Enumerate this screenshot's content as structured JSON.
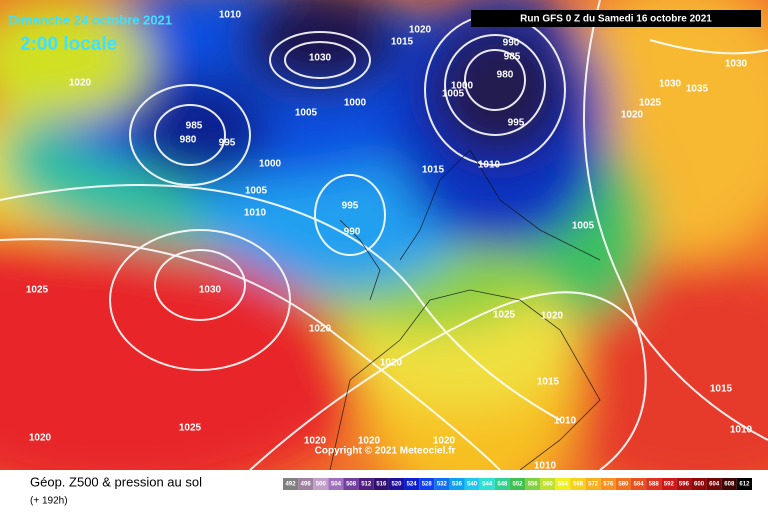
{
  "header": {
    "date": "Dimanche 24 octobre 2021",
    "time": "2:00 locale",
    "run": "Run GFS 0 Z du Samedi 16 octobre 2021"
  },
  "copyright": "Copyright © 2021 Meteociel.fr",
  "footer": {
    "title": "Géop. Z500 & pression au sol",
    "lead": "(+ 192h)"
  },
  "scale": [
    "492",
    "496",
    "500",
    "504",
    "508",
    "512",
    "516",
    "520",
    "524",
    "528",
    "532",
    "536",
    "540",
    "544",
    "548",
    "552",
    "556",
    "560",
    "564",
    "568",
    "572",
    "576",
    "580",
    "584",
    "588",
    "592",
    "596",
    "600",
    "604",
    "608",
    "612"
  ],
  "isobars": [
    "1010",
    "1020",
    "1015",
    "1030",
    "990",
    "985",
    "980",
    "1000",
    "1005",
    "995",
    "1010",
    "1015",
    "1020",
    "985",
    "980",
    "995",
    "1005",
    "1000",
    "1000",
    "1005",
    "1010",
    "995",
    "990",
    "1005",
    "1025",
    "1030",
    "1020",
    "1025",
    "1020",
    "1020",
    "1015",
    "1015",
    "1010",
    "1010",
    "1025",
    "1020",
    "1020",
    "1020",
    "1020",
    "1010",
    "1030",
    "1035",
    "1030",
    "1025",
    "1020"
  ]
}
